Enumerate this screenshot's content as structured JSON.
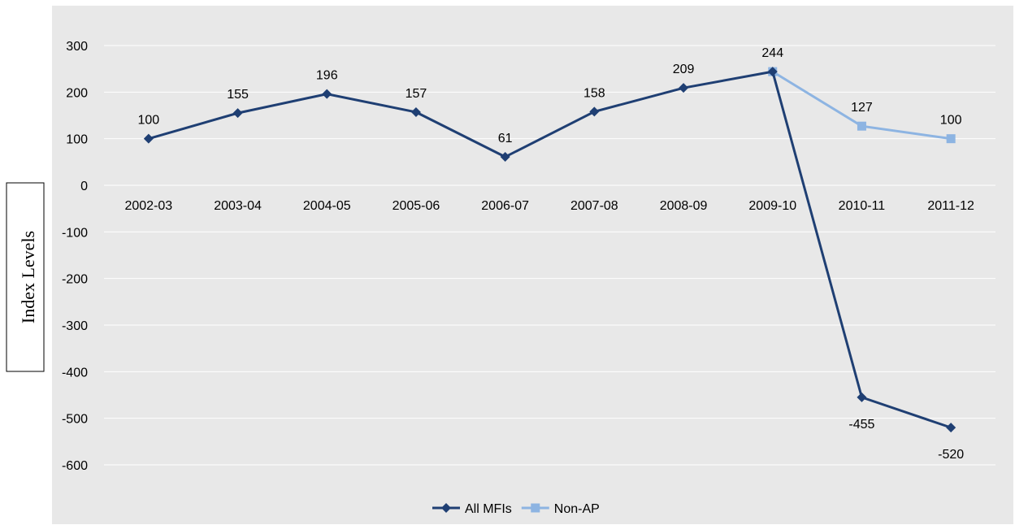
{
  "chart_data": {
    "type": "line",
    "ylabel": "Index Levels",
    "categories": [
      "2002-03",
      "2003-04",
      "2004-05",
      "2005-06",
      "2006-07",
      "2007-08",
      "2008-09",
      "2009-10",
      "2010-11",
      "2011-12"
    ],
    "ylim": [
      -600,
      300
    ],
    "yticks": [
      300,
      200,
      100,
      0,
      -100,
      -200,
      -300,
      -400,
      -500,
      -600
    ],
    "grid": true,
    "legend_position": "bottom",
    "series": [
      {
        "name": "All MFIs",
        "marker": "diamond",
        "color": "#1F3F73",
        "values": [
          100,
          155,
          196,
          157,
          61,
          158,
          209,
          244,
          -455,
          -520
        ],
        "labels": [
          "100",
          "155",
          "196",
          "157",
          "61",
          "158",
          "209",
          "",
          "-455",
          "-520"
        ]
      },
      {
        "name": "Non-AP",
        "marker": "square",
        "color": "#8DB4E2",
        "values": [
          null,
          null,
          null,
          null,
          null,
          null,
          null,
          244,
          127,
          100
        ],
        "labels": [
          "",
          "",
          "",
          "",
          "",
          "",
          "",
          "244",
          "127",
          "100"
        ]
      }
    ]
  }
}
